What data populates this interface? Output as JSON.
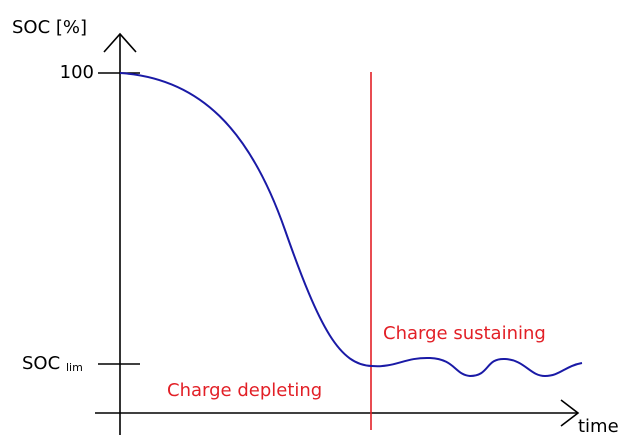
{
  "axes": {
    "y_label": "SOC [%]",
    "x_label": "time",
    "y_ticks": [
      "100",
      "SOC"
    ],
    "y_tick_subscript": "lim"
  },
  "annotations": [
    "Charge sustaining",
    "Charge depleting"
  ]
}
